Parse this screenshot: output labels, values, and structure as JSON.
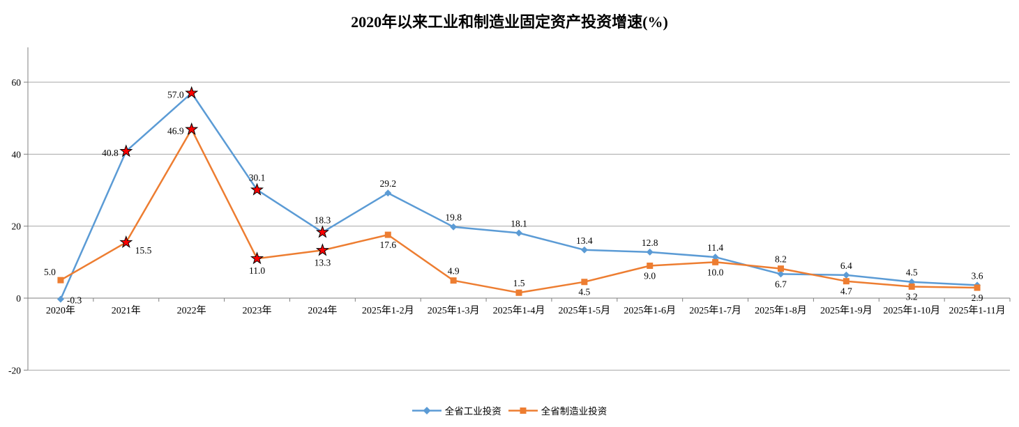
{
  "chart_data": {
    "type": "line",
    "title": "2020年以来工业和制造业固定资产投资增速(%)",
    "categories": [
      "2020年",
      "2021年",
      "2022年",
      "2023年",
      "2024年",
      "2025年1-2月",
      "2025年1-3月",
      "2025年1-4月",
      "2025年1-5月",
      "2025年1-6月",
      "2025年1-7月",
      "2025年1-8月",
      "2025年1-9月",
      "2025年1-10月",
      "2025年1-11月"
    ],
    "series": [
      {
        "id": "industrial",
        "name": "全省工业投资",
        "color": "#5B9BD5",
        "marker": "diamond",
        "values": [
          -0.3,
          40.8,
          57.0,
          30.1,
          18.3,
          29.2,
          19.8,
          18.1,
          13.4,
          12.8,
          11.4,
          6.7,
          6.4,
          4.5,
          3.6
        ],
        "label_pos": [
          "right",
          "left",
          "left",
          "above",
          "above",
          "above",
          "above",
          "above",
          "above",
          "above",
          "above",
          "below",
          "above",
          "above",
          "above"
        ]
      },
      {
        "id": "manufacturing",
        "name": "全省制造业投资",
        "color": "#ED7D31",
        "marker": "square",
        "values": [
          5.0,
          15.5,
          46.9,
          11.0,
          13.3,
          17.6,
          4.9,
          1.5,
          4.5,
          9.0,
          10.0,
          8.2,
          4.7,
          3.2,
          2.9
        ],
        "label_pos": [
          "above-left",
          "below-right",
          "left",
          "below",
          "below",
          "below",
          "above",
          "above",
          "below",
          "below",
          "below",
          "above",
          "below",
          "below",
          "below"
        ]
      }
    ],
    "star_marker": {
      "indices": [
        1,
        2,
        3,
        4
      ],
      "fill": "#FF0000",
      "stroke": "#000000"
    },
    "y_ticks": [
      -20,
      0,
      20,
      40,
      60
    ],
    "ylim": [
      -20,
      70
    ],
    "grid": true,
    "grid_color": "#A6A6A6",
    "axis_color": "#7F7F7F",
    "text_color": "#000000",
    "legend_position": "bottom"
  }
}
